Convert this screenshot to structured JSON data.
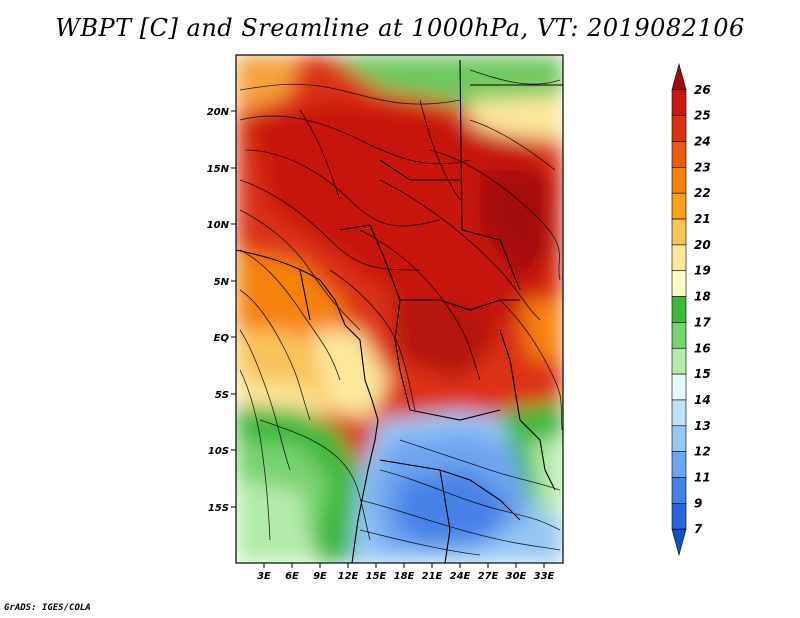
{
  "title": "WBPT [C] and Sreamline at 1000hPa, VT: 2019082106",
  "footer": "GrADS: IGES/COLA",
  "map": {
    "lat_labels": [
      "20N",
      "15N",
      "10N",
      "5N",
      "EQ",
      "5S",
      "10S",
      "15S"
    ],
    "lon_labels": [
      "3E",
      "6E",
      "9E",
      "12E",
      "15E",
      "18E",
      "21E",
      "24E",
      "27E",
      "30E",
      "33E"
    ]
  },
  "colorbar": {
    "levels": [
      "26",
      "25",
      "24",
      "23",
      "22",
      "21",
      "20",
      "19",
      "18",
      "17",
      "16",
      "15",
      "14",
      "13",
      "12",
      "11",
      "9",
      "7"
    ],
    "colors": [
      "#a50a0a",
      "#c8190f",
      "#dc3214",
      "#eb5a0f",
      "#f5820a",
      "#fa9f1e",
      "#fac35a",
      "#fde79b",
      "#fffac8",
      "#3cb83c",
      "#78d26e",
      "#b4ebaa",
      "#e6faff",
      "#bde0fa",
      "#96c8f5",
      "#6ea5f0",
      "#4682e6",
      "#2864dc",
      "#1450c8"
    ]
  }
}
